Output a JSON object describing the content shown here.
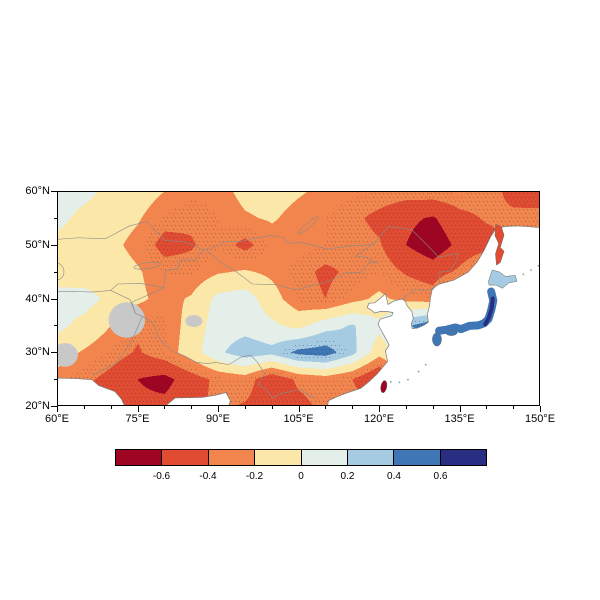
{
  "figure_meta": {
    "description": "Filled contour anomaly map over East Asia with stippling and diverging colorbar",
    "title": ""
  },
  "chart_data": {
    "type": "heatmap",
    "title": "",
    "xlabel": "",
    "ylabel": "",
    "x_domain": [
      60,
      150
    ],
    "y_domain": [
      20,
      60
    ],
    "x_ticks": [
      {
        "value": 60,
        "label": "60°E"
      },
      {
        "value": 75,
        "label": "75°E"
      },
      {
        "value": 90,
        "label": "90°E"
      },
      {
        "value": 105,
        "label": "105°E"
      },
      {
        "value": 120,
        "label": "120°E"
      },
      {
        "value": 135,
        "label": "135°E"
      },
      {
        "value": 150,
        "label": "150°E"
      }
    ],
    "y_ticks": [
      {
        "value": 60,
        "label": "60°N"
      },
      {
        "value": 50,
        "label": "50°N"
      },
      {
        "value": 40,
        "label": "40°N"
      },
      {
        "value": 30,
        "label": "30°N"
      },
      {
        "value": 20,
        "label": "20°N"
      }
    ],
    "minor_tick_step": 5,
    "lons": [
      60,
      65,
      70,
      75,
      80,
      85,
      90,
      95,
      100,
      105,
      110,
      115,
      120,
      125,
      130,
      135,
      140,
      145,
      150
    ],
    "lats": [
      60,
      55,
      50,
      45,
      40,
      35,
      30,
      25,
      20
    ],
    "values": [
      [
        0.1,
        0.05,
        -0.05,
        -0.1,
        -0.2,
        -0.28,
        -0.26,
        -0.15,
        -0.12,
        -0.18,
        -0.24,
        -0.28,
        -0.3,
        -0.32,
        -0.3,
        -0.28,
        -0.32,
        -0.46,
        -0.52
      ],
      [
        0.05,
        -0.05,
        -0.1,
        -0.18,
        -0.32,
        -0.36,
        -0.3,
        -0.22,
        -0.18,
        -0.26,
        -0.3,
        -0.36,
        -0.45,
        -0.56,
        -0.62,
        -0.46,
        -0.38,
        -0.36,
        -0.33
      ],
      [
        -0.05,
        -0.1,
        -0.15,
        -0.26,
        -0.48,
        -0.42,
        -0.3,
        -0.46,
        -0.28,
        -0.26,
        -0.3,
        -0.33,
        -0.38,
        -0.6,
        -0.72,
        -0.55,
        -0.48,
        -0.36,
        -0.42
      ],
      [
        -0.08,
        -0.12,
        -0.1,
        -0.18,
        -0.3,
        -0.32,
        -0.22,
        -0.18,
        -0.24,
        -0.34,
        -0.44,
        -0.36,
        -0.3,
        -0.42,
        -0.5,
        -0.36,
        -0.12,
        -0.06,
        -0.1
      ],
      [
        0.06,
        0.08,
        -0.05,
        -0.16,
        -0.26,
        -0.18,
        0.06,
        0.1,
        -0.12,
        -0.32,
        -0.4,
        -0.26,
        -0.16,
        -0.26,
        -0.3,
        0.1,
        0.32,
        0.1,
        0.05
      ],
      [
        0.05,
        -0.06,
        -0.2,
        -0.36,
        -0.32,
        -0.12,
        0.1,
        0.12,
        0.04,
        -0.06,
        0.12,
        0.22,
        0.05,
        0.36,
        0.55,
        0.6,
        0.3,
        0.06,
        0.02
      ],
      [
        -0.12,
        -0.22,
        -0.32,
        -0.42,
        -0.3,
        -0.1,
        0.16,
        0.32,
        0.26,
        0.46,
        0.5,
        0.26,
        -0.12,
        0.12,
        0.5,
        0.64,
        0.55,
        0.1,
        0.02
      ],
      [
        -0.26,
        -0.36,
        -0.46,
        -0.6,
        -0.66,
        -0.5,
        -0.35,
        -0.3,
        -0.56,
        -0.36,
        -0.3,
        -0.4,
        -0.66,
        -0.2,
        0.1,
        0.2,
        0.1,
        0.02,
        0.0
      ],
      [
        -0.3,
        -0.4,
        -0.5,
        -0.56,
        -0.55,
        -0.45,
        -0.36,
        -0.42,
        -0.52,
        -0.46,
        -0.35,
        -0.3,
        -0.36,
        -0.2,
        0.0,
        0.0,
        0.0,
        0.0,
        0.0
      ]
    ],
    "levels": [
      -0.6,
      -0.4,
      -0.2,
      0,
      0.2,
      0.4,
      0.6
    ],
    "palette": [
      "#9f0523",
      "#e04b31",
      "#f2854e",
      "#fbe7a8",
      "#e3efe8",
      "#a5cbe2",
      "#3e76b6",
      "#2a2e83"
    ],
    "missing_color": "#c8c8c8",
    "stipple_threshold": 0.3,
    "colorbar_labels": [
      "-0.6",
      "-0.4",
      "-0.2",
      "0",
      "0.2",
      "0.4",
      "0.6"
    ],
    "missing_regions": [
      {
        "lon": 73.0,
        "lat": 36.0,
        "rlon": 3.4,
        "rlat": 3.3
      },
      {
        "lon": 61.5,
        "lat": 29.5,
        "rlon": 2.4,
        "rlat": 2.2
      },
      {
        "lon": 85.5,
        "lat": 35.8,
        "rlon": 1.6,
        "rlat": 1.1
      }
    ],
    "coast": {
      "main": [
        [
          150,
          53.2
        ],
        [
          146,
          53.5
        ],
        [
          143.5,
          53.4
        ],
        [
          141.8,
          53.0
        ],
        [
          140.8,
          51.5
        ],
        [
          139.6,
          49.0
        ],
        [
          138.3,
          46.8
        ],
        [
          136.6,
          44.9
        ],
        [
          133.9,
          43.4
        ],
        [
          131.3,
          42.7
        ],
        [
          130.6,
          42.3
        ],
        [
          129.9,
          41.6
        ],
        [
          129.6,
          40.2
        ],
        [
          129.4,
          38.6
        ],
        [
          129.0,
          37.0
        ],
        [
          129.2,
          35.6
        ],
        [
          128.5,
          35.1
        ],
        [
          127.2,
          34.5
        ],
        [
          126.2,
          34.4
        ],
        [
          126.0,
          35.3
        ],
        [
          126.4,
          36.3
        ],
        [
          126.1,
          37.6
        ],
        [
          125.2,
          38.7
        ],
        [
          124.9,
          39.5
        ],
        [
          124.3,
          39.9
        ],
        [
          122.9,
          39.6
        ],
        [
          121.7,
          38.9
        ],
        [
          121.2,
          40.9
        ],
        [
          120.2,
          40.0
        ],
        [
          119.2,
          39.2
        ],
        [
          118.1,
          39.1
        ],
        [
          117.8,
          38.3
        ],
        [
          118.5,
          37.9
        ],
        [
          119.2,
          37.3
        ],
        [
          120.3,
          37.6
        ],
        [
          121.4,
          37.6
        ],
        [
          122.6,
          37.4
        ],
        [
          122.4,
          36.8
        ],
        [
          120.3,
          36.2
        ],
        [
          119.8,
          35.3
        ],
        [
          120.3,
          34.3
        ],
        [
          120.9,
          33.2
        ],
        [
          121.5,
          32.1
        ],
        [
          121.9,
          31.3
        ],
        [
          121.2,
          30.3
        ],
        [
          121.6,
          28.3
        ],
        [
          119.6,
          25.9
        ],
        [
          118.1,
          24.5
        ],
        [
          116.6,
          23.3
        ],
        [
          114.8,
          22.7
        ],
        [
          113.4,
          22.2
        ],
        [
          111.9,
          21.6
        ],
        [
          110.6,
          21.0
        ],
        [
          110.4,
          20.0
        ],
        [
          150,
          20.0
        ]
      ],
      "extra": [
        [
          [
            80.2,
            20.0
          ],
          [
            82.0,
            21.5
          ],
          [
            87.0,
            21.6
          ],
          [
            89.5,
            22.0
          ],
          [
            91.5,
            22.5
          ],
          [
            92.3,
            21.0
          ],
          [
            92.0,
            20.0
          ]
        ],
        [
          [
            60,
            25.2
          ],
          [
            63.5,
            25.1
          ],
          [
            66.5,
            24.9
          ],
          [
            67.8,
            23.8
          ],
          [
            70.8,
            22.7
          ],
          [
            72.0,
            21.3
          ],
          [
            72.6,
            20.0
          ],
          [
            60,
            20.0
          ]
        ]
      ]
    },
    "lakes": [
      {
        "lon": 76.8,
        "lat": 46.1,
        "rlon": 2.5,
        "rlat": 0.55,
        "rot": -8
      },
      {
        "lon": 106.8,
        "lat": 53.6,
        "rlon": 2.4,
        "rlat": 0.45,
        "rot": -40
      },
      {
        "lon": 59.8,
        "lat": 45.0,
        "rlon": 1.5,
        "rlat": 1.6,
        "rot": 0
      }
    ],
    "borders": [
      [
        [
          74.6,
          37.2
        ],
        [
          73.9,
          39.3
        ],
        [
          76.2,
          40.3
        ],
        [
          79.9,
          42.0
        ],
        [
          80.2,
          45.2
        ],
        [
          82.5,
          45.5
        ],
        [
          83.0,
          47.2
        ],
        [
          85.7,
          47.1
        ],
        [
          87.3,
          49.0
        ]
      ],
      [
        [
          87.3,
          49.0
        ],
        [
          89.7,
          49.7
        ],
        [
          91.6,
          50.6
        ],
        [
          94.3,
          50.6
        ],
        [
          97.2,
          51.3
        ],
        [
          99.9,
          51.7
        ],
        [
          102.2,
          51.3
        ],
        [
          103.0,
          50.3
        ],
        [
          105.3,
          50.4
        ],
        [
          107.9,
          49.9
        ],
        [
          110.2,
          49.2
        ],
        [
          113.5,
          49.6
        ],
        [
          115.5,
          49.9
        ],
        [
          116.7,
          49.8
        ],
        [
          119.2,
          50.3
        ]
      ],
      [
        [
          87.8,
          49.0
        ],
        [
          90.7,
          46.6
        ],
        [
          93.5,
          44.9
        ],
        [
          96.4,
          42.7
        ],
        [
          100.8,
          42.6
        ],
        [
          104.5,
          41.6
        ],
        [
          107.5,
          42.4
        ],
        [
          111.0,
          43.3
        ],
        [
          114.0,
          44.9
        ],
        [
          116.6,
          44.8
        ],
        [
          118.3,
          46.7
        ],
        [
          119.7,
          46.6
        ],
        [
          117.4,
          47.7
        ],
        [
          115.6,
          47.9
        ],
        [
          119.2,
          50.3
        ]
      ],
      [
        [
          119.2,
          50.3
        ],
        [
          121.7,
          53.4
        ],
        [
          126.1,
          52.8
        ],
        [
          129.5,
          49.4
        ],
        [
          131.1,
          47.7
        ],
        [
          134.7,
          48.4
        ],
        [
          134.6,
          47.3
        ],
        [
          133.2,
          45.1
        ],
        [
          131.2,
          44.9
        ],
        [
          131.3,
          42.7
        ]
      ],
      [
        [
          130.6,
          42.3
        ],
        [
          129.7,
          41.7
        ],
        [
          128.1,
          41.4
        ],
        [
          126.9,
          41.8
        ],
        [
          125.3,
          40.6
        ],
        [
          124.3,
          39.9
        ]
      ],
      [
        [
          74.6,
          37.2
        ],
        [
          75.9,
          36.7
        ],
        [
          77.8,
          35.5
        ],
        [
          78.9,
          33.0
        ],
        [
          79.5,
          32.0
        ],
        [
          81.5,
          30.2
        ],
        [
          84.0,
          29.2
        ],
        [
          86.0,
          28.1
        ],
        [
          88.1,
          27.9
        ],
        [
          89.5,
          28.1
        ],
        [
          92.0,
          27.7
        ],
        [
          94.5,
          29.2
        ],
        [
          96.1,
          29.4
        ],
        [
          97.3,
          28.2
        ],
        [
          98.7,
          26.0
        ],
        [
          97.5,
          24.0
        ],
        [
          98.9,
          23.1
        ],
        [
          100.2,
          21.5
        ],
        [
          101.8,
          22.4
        ],
        [
          103.2,
          22.6
        ],
        [
          105.3,
          23.2
        ],
        [
          106.7,
          22.1
        ],
        [
          108.1,
          21.5
        ]
      ],
      [
        [
          60,
          41.3
        ],
        [
          63.5,
          41.3
        ],
        [
          66.6,
          41.2
        ],
        [
          70.0,
          41.5
        ],
        [
          73.6,
          39.8
        ],
        [
          74.6,
          37.2
        ]
      ],
      [
        [
          70.0,
          41.5
        ],
        [
          71.3,
          42.7
        ],
        [
          75.6,
          42.8
        ],
        [
          79.9,
          42.0
        ]
      ],
      [
        [
          60,
          51.0
        ],
        [
          64.0,
          51.3
        ],
        [
          69.0,
          51.1
        ],
        [
          73.5,
          53.5
        ],
        [
          76.8,
          54.3
        ],
        [
          80.1,
          50.8
        ],
        [
          84.0,
          50.5
        ],
        [
          87.3,
          49.0
        ]
      ],
      [
        [
          66.6,
          25.7
        ],
        [
          69.6,
          27.2
        ],
        [
          71.0,
          27.9
        ],
        [
          73.9,
          32.0
        ],
        [
          75.9,
          36.7
        ]
      ]
    ],
    "islands": [
      {
        "kind": "polygon",
        "name": "sakhalin",
        "fill": "#e04b31",
        "pts": [
          [
            141.8,
            53.8
          ],
          [
            142.8,
            53.3
          ],
          [
            143.3,
            51.8
          ],
          [
            142.6,
            49.5
          ],
          [
            143.3,
            48.8
          ],
          [
            142.6,
            46.7
          ],
          [
            141.9,
            46.2
          ],
          [
            141.7,
            48.3
          ],
          [
            142.3,
            50.2
          ],
          [
            141.6,
            51.7
          ]
        ]
      },
      {
        "kind": "polygon",
        "name": "hokkaido",
        "fill": "#a5cbe2",
        "pts": [
          [
            140.4,
            43.2
          ],
          [
            141.1,
            45.3
          ],
          [
            142.5,
            44.9
          ],
          [
            143.6,
            44.1
          ],
          [
            145.4,
            44.3
          ],
          [
            145.7,
            43.2
          ],
          [
            144.2,
            42.9
          ],
          [
            143.0,
            41.9
          ],
          [
            141.8,
            42.5
          ],
          [
            140.5,
            42.5
          ]
        ]
      },
      {
        "kind": "band",
        "name": "honshu",
        "color": "#3e76b6",
        "width": 8,
        "pts": [
          [
            131.2,
            34.0
          ],
          [
            132.6,
            34.2
          ],
          [
            134.2,
            34.6
          ],
          [
            135.3,
            34.3
          ],
          [
            136.8,
            34.9
          ],
          [
            138.5,
            35.0
          ],
          [
            139.6,
            35.4
          ],
          [
            140.4,
            36.2
          ],
          [
            140.9,
            37.8
          ],
          [
            141.3,
            39.6
          ],
          [
            140.9,
            41.3
          ]
        ]
      },
      {
        "kind": "band",
        "name": "honshu-core",
        "color": "#2a2e83",
        "width": 4,
        "pts": [
          [
            139.8,
            35.2
          ],
          [
            140.5,
            36.5
          ],
          [
            141.0,
            38.2
          ],
          [
            141.2,
            40.0
          ]
        ]
      },
      {
        "kind": "ellipse",
        "name": "kyushu",
        "fill": "#3e76b6",
        "lon": 130.8,
        "lat": 32.4,
        "rlon": 0.85,
        "rlat": 1.25,
        "rot": 0
      },
      {
        "kind": "ellipse",
        "name": "shikoku",
        "fill": "#3e76b6",
        "lon": 133.5,
        "lat": 33.6,
        "rlon": 1.05,
        "rlat": 0.5,
        "rot": 0
      },
      {
        "kind": "ellipse",
        "name": "taiwan",
        "fill": "#9f0523",
        "lon": 120.9,
        "lat": 23.6,
        "rlon": 0.55,
        "rlat": 1.15,
        "rot": 10
      },
      {
        "kind": "dots",
        "name": "ryukyu-islands",
        "color": "#6fa3cf",
        "r": 0.9,
        "pts": [
          [
            122.2,
            24.5
          ],
          [
            123.8,
            24.4
          ],
          [
            125.4,
            24.9
          ],
          [
            127.4,
            26.4
          ],
          [
            128.7,
            27.7
          ]
        ]
      },
      {
        "kind": "dots",
        "name": "kuril-islands",
        "color": "#999999",
        "r": 0.9,
        "pts": [
          [
            146.9,
            44.5
          ],
          [
            148.3,
            45.3
          ],
          [
            149.7,
            46.1
          ]
        ]
      }
    ]
  }
}
